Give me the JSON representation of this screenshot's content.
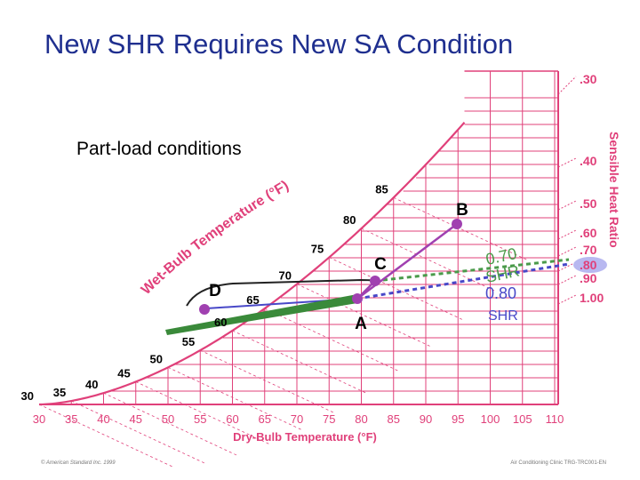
{
  "title": "New SHR Requires New SA Condition",
  "subtitle": "Part-load conditions",
  "chart_data": {
    "type": "psychrometric",
    "x_axis": {
      "label": "Dry-Bulb Temperature (°F)",
      "ticks": [
        "30",
        "35",
        "40",
        "45",
        "50",
        "55",
        "60",
        "65",
        "70",
        "75",
        "80",
        "85",
        "90",
        "95",
        "100",
        "105",
        "110"
      ]
    },
    "wet_bulb_axis": {
      "label": "Wet-Bulb Temperature (°F)",
      "ticks": [
        "30",
        "35",
        "40",
        "45",
        "50",
        "55",
        "60",
        "65",
        "70",
        "75",
        "80",
        "85"
      ]
    },
    "shr_scale": {
      "label": "Sensible Heat Ratio",
      "ticks": [
        ".30",
        ".40",
        ".50",
        ".60",
        ".70",
        ".80",
        ".90",
        "1.00"
      ],
      "highlighted": ".80"
    },
    "points": [
      {
        "label": "A",
        "db": 80,
        "color": "#a040b0"
      },
      {
        "label": "B",
        "db": 95,
        "color": "#a040b0"
      },
      {
        "label": "C",
        "db": 83,
        "color": "#a040b0"
      },
      {
        "label": "D",
        "db": 53,
        "color": "#a040b0"
      }
    ],
    "shr_lines": [
      {
        "label": "0.70 SHR",
        "value": 0.7,
        "color": "#4a9a4a"
      },
      {
        "label": "0.80 SHR",
        "value": 0.8,
        "color": "#4848c8"
      }
    ],
    "colors": {
      "grid": "#e0407a",
      "title": "#1f2f8f",
      "point": "#a040b0",
      "green": "#3a8a3a",
      "blue": "#4848c8"
    }
  },
  "footer": {
    "left": "© American Standard Inc. 1999",
    "right": "Air Conditioning Clinic TRG-TRC001-EN"
  }
}
